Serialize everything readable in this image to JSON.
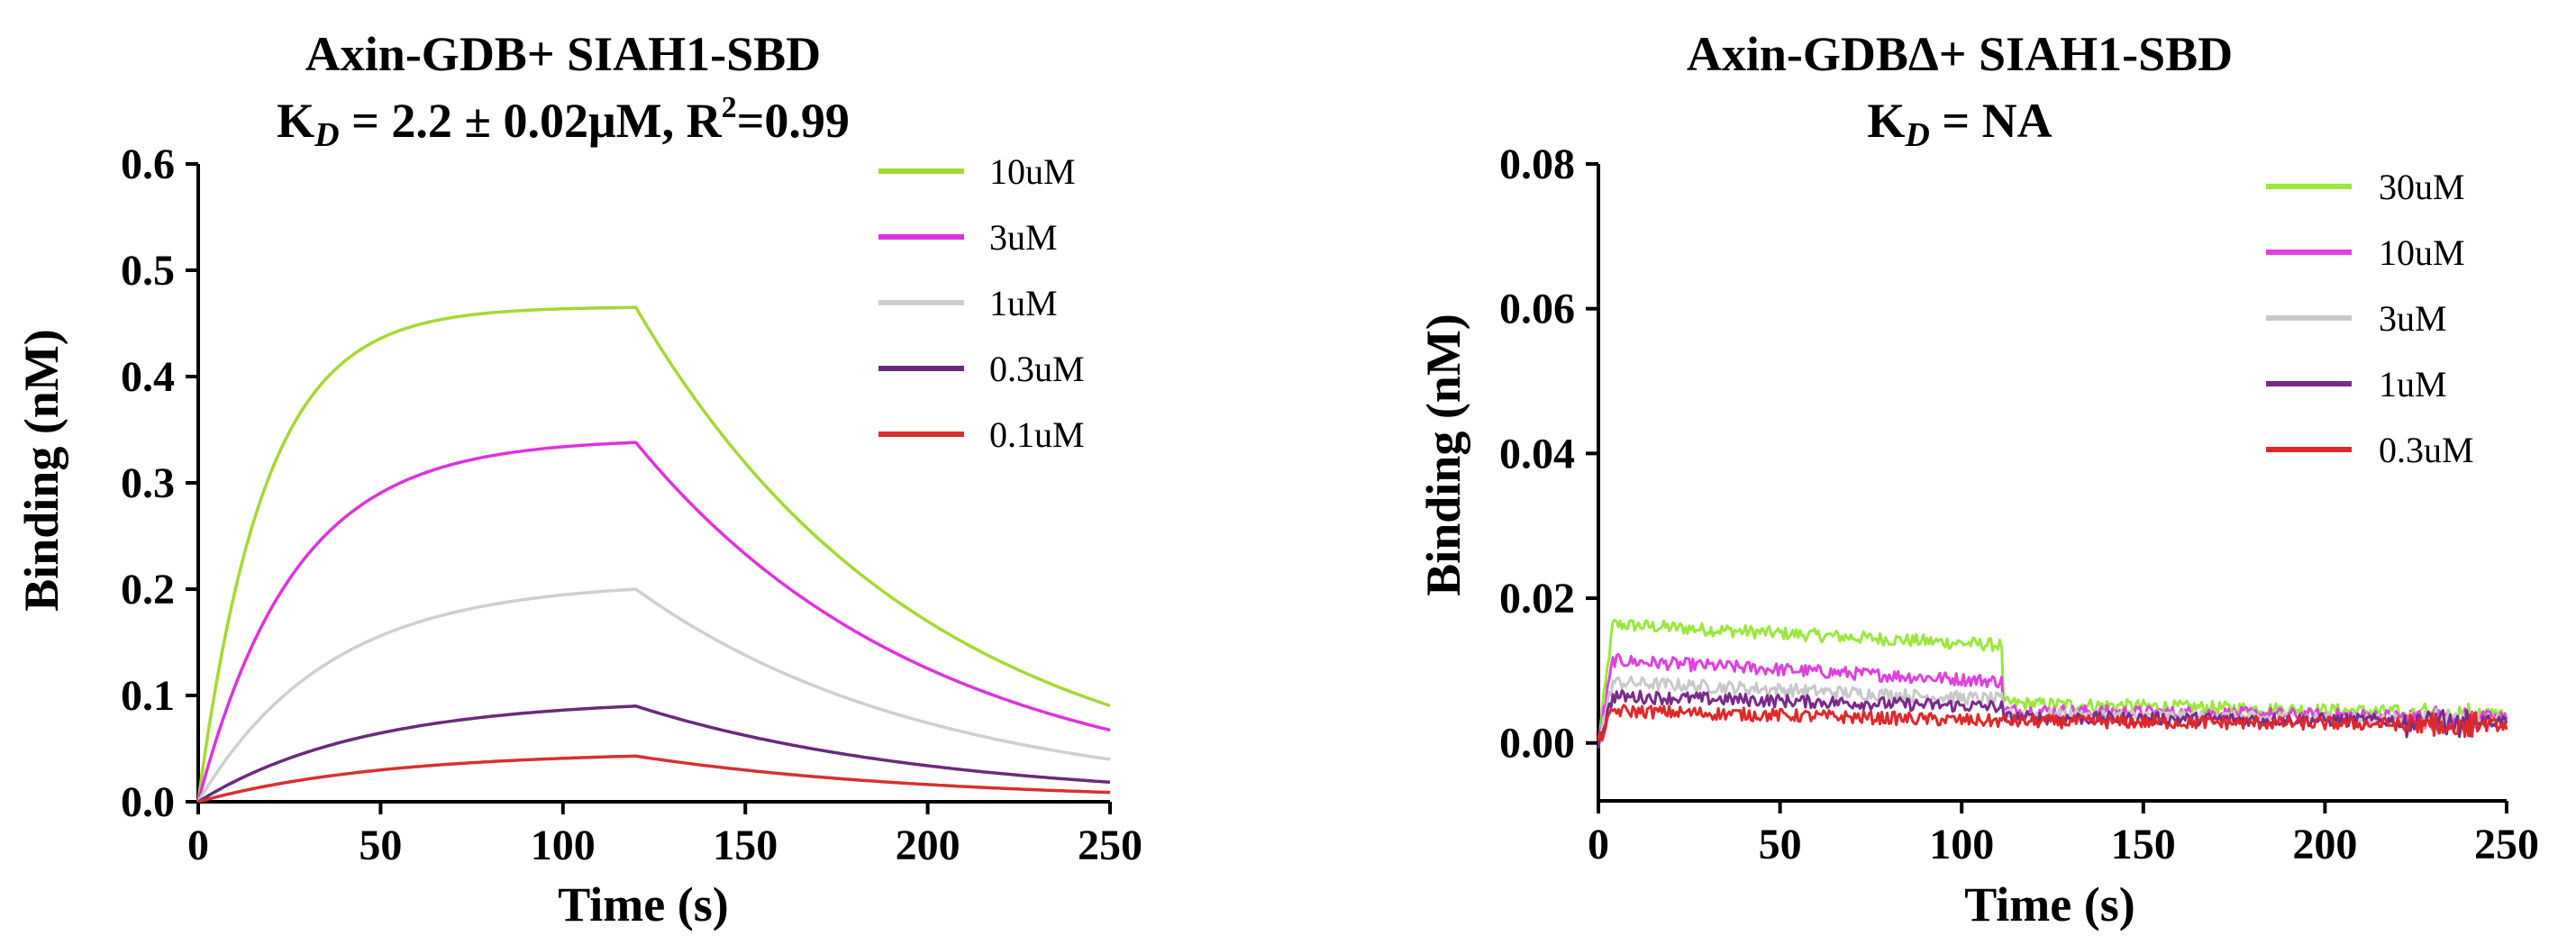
{
  "chart_data": [
    {
      "type": "line",
      "title": "Axin-GDB+ SIAH1-SBD",
      "subtitle": {
        "k": "K",
        "d": "D",
        "rest": " = 2.2 ± 0.02μM, R",
        "sup": "2",
        "tail": "=0.99"
      },
      "xlabel": "Time (s)",
      "ylabel": "Binding (nM)",
      "xlim": [
        0,
        250
      ],
      "ylim": [
        0,
        0.6
      ],
      "xticks": [
        "0",
        "50",
        "100",
        "150",
        "200",
        "250"
      ],
      "yticks": [
        "0.0",
        "0.1",
        "0.2",
        "0.3",
        "0.4",
        "0.5",
        "0.6"
      ],
      "switch_time": 120,
      "series": [
        {
          "name": "10uM",
          "color": "#a6d832",
          "plateau": 0.465,
          "kobs": 0.055,
          "koff": 0.0126
        },
        {
          "name": "3uM",
          "color": "#dd33dd",
          "plateau": 0.338,
          "kobs": 0.038,
          "koff": 0.0124
        },
        {
          "name": "1uM",
          "color": "#cfcfcf",
          "plateau": 0.2,
          "kobs": 0.028,
          "koff": 0.0124
        },
        {
          "name": "0.3uM",
          "color": "#6a2a7a",
          "plateau": 0.09,
          "kobs": 0.022,
          "koff": 0.0122
        },
        {
          "name": "0.1uM",
          "color": "#d93030",
          "plateau": 0.043,
          "kobs": 0.02,
          "koff": 0.0122
        }
      ]
    },
    {
      "type": "line",
      "title": "Axin-GDBΔ+ SIAH1-SBD",
      "subtitle": {
        "k": "K",
        "d": "D",
        "rest": " = NA"
      },
      "xlabel": "Time (s)",
      "ylabel": "Binding (nM)",
      "xlim": [
        0,
        250
      ],
      "ylim": [
        -0.008,
        0.08
      ],
      "xticks": [
        "0",
        "50",
        "100",
        "150",
        "200",
        "250"
      ],
      "yticks": [
        "0.00",
        "0.02",
        "0.04",
        "0.06",
        "0.08"
      ],
      "switch_time": 111,
      "series": [
        {
          "name": "30uM",
          "color": "#9ae83c",
          "start": 0.0165,
          "end": 0.0135,
          "after": 0.0055,
          "final": 0.004
        },
        {
          "name": "10uM",
          "color": "#e040e0",
          "start": 0.0115,
          "end": 0.0085,
          "after": 0.0045,
          "final": 0.0035
        },
        {
          "name": "3uM",
          "color": "#c8c8c8",
          "start": 0.0085,
          "end": 0.006,
          "after": 0.004,
          "final": 0.003
        },
        {
          "name": "1uM",
          "color": "#7a2a8a",
          "start": 0.0065,
          "end": 0.005,
          "after": 0.0035,
          "final": 0.003
        },
        {
          "name": "0.3uM",
          "color": "#e02828",
          "start": 0.0045,
          "end": 0.003,
          "after": 0.003,
          "final": 0.0025
        }
      ]
    }
  ]
}
